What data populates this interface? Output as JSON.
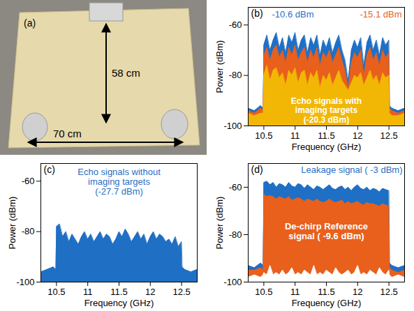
{
  "photo": {
    "label": "(a)",
    "height_label": "58 cm",
    "width_label": "70 cm"
  },
  "chart_data": [
    {
      "type": "area",
      "label": "(b)",
      "x_label": "Frequency (GHz)",
      "y_label": "Power (dBm)",
      "xlim": [
        10.25,
        12.75
      ],
      "xticks": [
        10.5,
        11,
        11.5,
        12,
        12.5
      ],
      "ylim": [
        -100,
        -53
      ],
      "yticks": [
        -100,
        -80,
        -60
      ],
      "x": [
        10.25,
        10.35,
        10.45,
        10.49,
        10.5,
        10.55,
        10.6,
        10.65,
        10.7,
        10.75,
        10.8,
        10.85,
        10.9,
        10.95,
        11,
        11.05,
        11.1,
        11.15,
        11.2,
        11.25,
        11.3,
        11.35,
        11.4,
        11.45,
        11.5,
        11.55,
        11.6,
        11.65,
        11.7,
        11.75,
        11.8,
        11.85,
        11.9,
        11.95,
        12,
        12.05,
        12.1,
        12.15,
        12.2,
        12.25,
        12.3,
        12.35,
        12.4,
        12.45,
        12.5,
        12.51,
        12.55,
        12.65,
        12.75
      ],
      "series": [
        {
          "name": "-10.6 dBm",
          "color": "#1f6fc5",
          "values": [
            -93,
            -94,
            -92,
            -93,
            -68,
            -64,
            -70,
            -66,
            -63,
            -69,
            -65,
            -71,
            -64,
            -67,
            -63,
            -70,
            -66,
            -64,
            -71,
            -65,
            -68,
            -64,
            -72,
            -66,
            -69,
            -65,
            -71,
            -67,
            -64,
            -70,
            -74,
            -82,
            -70,
            -66,
            -69,
            -65,
            -76,
            -67,
            -64,
            -70,
            -66,
            -72,
            -65,
            -68,
            -66,
            -92,
            -93,
            -94,
            -93
          ]
        },
        {
          "name": "-15.1 dBm",
          "color": "#e8601c",
          "values": [
            -94,
            -95,
            -93,
            -94,
            -72,
            -69,
            -74,
            -70,
            -68,
            -73,
            -70,
            -75,
            -69,
            -72,
            -68,
            -74,
            -71,
            -69,
            -75,
            -70,
            -73,
            -69,
            -76,
            -71,
            -73,
            -70,
            -75,
            -72,
            -69,
            -74,
            -78,
            -85,
            -75,
            -71,
            -73,
            -70,
            -80,
            -72,
            -69,
            -74,
            -71,
            -76,
            -70,
            -73,
            -71,
            -93,
            -94,
            -95,
            -94
          ]
        },
        {
          "name": "Echo signals with\nimaging targets\n(-20.3 dBm)",
          "color": "#f2b705",
          "values": [
            -95,
            -96,
            -95,
            -95,
            -80,
            -76,
            -82,
            -78,
            -77,
            -81,
            -79,
            -84,
            -78,
            -80,
            -77,
            -83,
            -79,
            -78,
            -84,
            -79,
            -81,
            -78,
            -85,
            -80,
            -82,
            -79,
            -84,
            -81,
            -78,
            -82,
            -84,
            -86,
            -83,
            -80,
            -81,
            -79,
            -84,
            -81,
            -78,
            -82,
            -80,
            -84,
            -79,
            -81,
            -80,
            -95,
            -96,
            -96,
            -95
          ]
        }
      ]
    },
    {
      "type": "area",
      "label": "(c)",
      "x_label": "Frequency (GHz)",
      "y_label": "Power (dBm)",
      "xlim": [
        10.25,
        12.75
      ],
      "xticks": [
        10.5,
        11,
        11.5,
        12,
        12.5
      ],
      "ylim": [
        -100,
        -53
      ],
      "yticks": [
        -100,
        -80,
        -60
      ],
      "x": [
        10.25,
        10.35,
        10.45,
        10.49,
        10.5,
        10.55,
        10.6,
        10.65,
        10.7,
        10.75,
        10.8,
        10.85,
        10.9,
        10.95,
        11,
        11.05,
        11.1,
        11.15,
        11.2,
        11.25,
        11.3,
        11.35,
        11.4,
        11.45,
        11.5,
        11.55,
        11.6,
        11.65,
        11.7,
        11.75,
        11.8,
        11.85,
        11.9,
        11.95,
        12,
        12.05,
        12.1,
        12.15,
        12.2,
        12.25,
        12.3,
        12.35,
        12.4,
        12.45,
        12.5,
        12.51,
        12.55,
        12.65,
        12.75
      ],
      "series": [
        {
          "name": "Echo signals without\nimaging targets\n(-27.7 dBm)",
          "color": "#1f6fc5",
          "values": [
            -96,
            -95,
            -94,
            -95,
            -78,
            -77,
            -82,
            -80,
            -84,
            -81,
            -83,
            -85,
            -82,
            -80,
            -83,
            -81,
            -84,
            -82,
            -80,
            -83,
            -81,
            -82,
            -85,
            -83,
            -80,
            -82,
            -79,
            -81,
            -84,
            -82,
            -80,
            -83,
            -81,
            -85,
            -82,
            -80,
            -83,
            -81,
            -82,
            -84,
            -83,
            -85,
            -82,
            -86,
            -84,
            -94,
            -95,
            -96,
            -95
          ]
        }
      ]
    },
    {
      "type": "area",
      "label": "(d)",
      "x_label": "Frequency (GHz)",
      "y_label": "Power (dBm)",
      "xlim": [
        10.25,
        12.75
      ],
      "xticks": [
        10.5,
        11,
        11.5,
        12,
        12.5
      ],
      "ylim": [
        -100,
        -50
      ],
      "yticks": [
        -100,
        -80,
        -60
      ],
      "x": [
        10.25,
        10.35,
        10.45,
        10.49,
        10.5,
        10.55,
        10.6,
        10.65,
        10.7,
        10.75,
        10.8,
        10.85,
        10.9,
        10.95,
        11,
        11.05,
        11.1,
        11.15,
        11.2,
        11.25,
        11.3,
        11.35,
        11.4,
        11.45,
        11.5,
        11.55,
        11.6,
        11.65,
        11.7,
        11.75,
        11.8,
        11.85,
        11.9,
        11.95,
        12,
        12.05,
        12.1,
        12.15,
        12.2,
        12.25,
        12.3,
        12.35,
        12.4,
        12.45,
        12.5,
        12.51,
        12.55,
        12.65,
        12.75
      ],
      "series": [
        {
          "name": "Leakage signal ( -3 dBm)",
          "color": "#1f6fc5",
          "values": [
            -93,
            -94,
            -92,
            -93,
            -58,
            -57.5,
            -59,
            -58,
            -60,
            -58.5,
            -59,
            -60,
            -58,
            -59.5,
            -60,
            -58.5,
            -59,
            -60.5,
            -59,
            -60,
            -61,
            -59.5,
            -60,
            -61,
            -60,
            -59,
            -60.5,
            -61,
            -60,
            -59.5,
            -61,
            -60,
            -61.5,
            -60,
            -59,
            -60.5,
            -61,
            -60,
            -61.5,
            -60.5,
            -61,
            -62,
            -60.5,
            -61,
            -61.5,
            -92,
            -93,
            -94,
            -93
          ]
        },
        {
          "name": "De-chirp Reference\nsignal ( -9.6 dBm)",
          "color": "#e8601c",
          "values": [
            -95,
            -95,
            -94,
            -95,
            -63,
            -64,
            -63.5,
            -64,
            -65,
            -64,
            -64.5,
            -65,
            -64,
            -65.5,
            -65,
            -64.5,
            -65,
            -66,
            -65,
            -65.5,
            -66,
            -65,
            -66,
            -66.5,
            -66,
            -65,
            -66,
            -66.5,
            -66,
            -65.5,
            -67,
            -66,
            -67,
            -66.5,
            -66,
            -67,
            -67.5,
            -66.5,
            -67,
            -67,
            -67.5,
            -68,
            -67,
            -67.5,
            -68,
            -94,
            -95,
            -96,
            -95
          ]
        },
        {
          "color": "#ffffff",
          "values": [
            -98,
            -97,
            -98,
            -97,
            -96,
            -97,
            -93,
            -97,
            -96,
            -97,
            -95,
            -97,
            -96,
            -94,
            -97,
            -96,
            -97,
            -95,
            -96,
            -97,
            -93,
            -97,
            -96,
            -97,
            -95,
            -96,
            -97,
            -94,
            -96,
            -97,
            -96,
            -95,
            -97,
            -96,
            -93,
            -97,
            -96,
            -97,
            -95,
            -96,
            -97,
            -94,
            -96,
            -97,
            -95,
            -97,
            -98,
            -97,
            -98
          ]
        }
      ]
    }
  ]
}
